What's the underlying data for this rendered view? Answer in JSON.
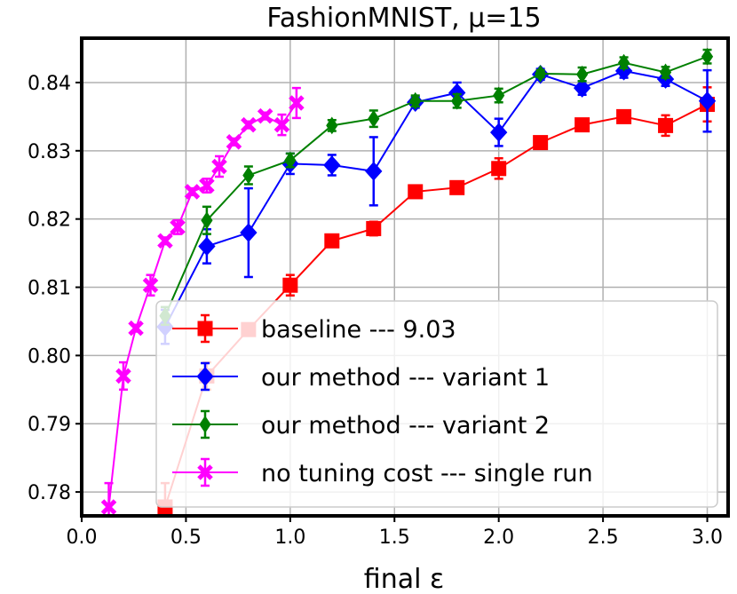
{
  "chart_data": {
    "type": "line",
    "title": "FashionMNIST, μ=15",
    "xlabel": "final ε",
    "ylabel": "",
    "xlim": [
      0.0,
      3.1
    ],
    "ylim": [
      0.7765,
      0.8465
    ],
    "xticks": [
      0.0,
      0.5,
      1.0,
      1.5,
      2.0,
      2.5,
      3.0
    ],
    "xtick_labels": [
      "0.0",
      "0.5",
      "1.0",
      "1.5",
      "2.0",
      "2.5",
      "3.0"
    ],
    "yticks": [
      0.78,
      0.79,
      0.8,
      0.81,
      0.82,
      0.83,
      0.84
    ],
    "ytick_labels": [
      "0.78",
      "0.79",
      "0.80",
      "0.81",
      "0.82",
      "0.83",
      "0.84"
    ],
    "grid": true,
    "legend_position": "lower-right",
    "series": [
      {
        "name": "baseline --- 9.03",
        "color": "#ff0000",
        "marker": "square",
        "points": [
          {
            "x": 0.4,
            "y": 0.7778,
            "err": 0.0035
          },
          {
            "x": 0.6,
            "y": 0.797,
            "err": 0.002
          },
          {
            "x": 0.8,
            "y": 0.8038,
            "err": 0.0008
          },
          {
            "x": 1.0,
            "y": 0.8103,
            "err": 0.0015
          },
          {
            "x": 1.2,
            "y": 0.8168,
            "err": 0.0005
          },
          {
            "x": 1.4,
            "y": 0.8186,
            "err": 0.001
          },
          {
            "x": 1.6,
            "y": 0.824,
            "err": 0.0005
          },
          {
            "x": 1.8,
            "y": 0.8246,
            "err": 0.0008
          },
          {
            "x": 2.0,
            "y": 0.8274,
            "err": 0.0015
          },
          {
            "x": 2.2,
            "y": 0.8312,
            "err": 0.0005
          },
          {
            "x": 2.4,
            "y": 0.8338,
            "err": 0.0005
          },
          {
            "x": 2.6,
            "y": 0.835,
            "err": 0.0005
          },
          {
            "x": 2.8,
            "y": 0.8337,
            "err": 0.0015
          },
          {
            "x": 3.0,
            "y": 0.8368,
            "err": 0.0025
          }
        ]
      },
      {
        "name": "our method --- variant 1",
        "color": "#0000ff",
        "marker": "diamond",
        "points": [
          {
            "x": 0.4,
            "y": 0.8042,
            "err": 0.0025
          },
          {
            "x": 0.6,
            "y": 0.816,
            "err": 0.0025
          },
          {
            "x": 0.8,
            "y": 0.818,
            "err": 0.0065
          },
          {
            "x": 1.0,
            "y": 0.8281,
            "err": 0.0015
          },
          {
            "x": 1.2,
            "y": 0.8279,
            "err": 0.0015
          },
          {
            "x": 1.4,
            "y": 0.827,
            "err": 0.005
          },
          {
            "x": 1.6,
            "y": 0.8371,
            "err": 0.0008
          },
          {
            "x": 1.8,
            "y": 0.8385,
            "err": 0.0015
          },
          {
            "x": 2.0,
            "y": 0.8327,
            "err": 0.002
          },
          {
            "x": 2.2,
            "y": 0.8412,
            "err": 0.0008
          },
          {
            "x": 2.4,
            "y": 0.8392,
            "err": 0.001
          },
          {
            "x": 2.6,
            "y": 0.8417,
            "err": 0.001
          },
          {
            "x": 2.8,
            "y": 0.8405,
            "err": 0.001
          },
          {
            "x": 3.0,
            "y": 0.8373,
            "err": 0.0045
          }
        ]
      },
      {
        "name": "our method --- variant 2",
        "color": "#008000",
        "marker": "thin-diamond",
        "points": [
          {
            "x": 0.4,
            "y": 0.8058,
            "err": 0.0013
          },
          {
            "x": 0.6,
            "y": 0.8198,
            "err": 0.002
          },
          {
            "x": 0.8,
            "y": 0.8264,
            "err": 0.0013
          },
          {
            "x": 1.0,
            "y": 0.8286,
            "err": 0.001
          },
          {
            "x": 1.2,
            "y": 0.8337,
            "err": 0.0008
          },
          {
            "x": 1.4,
            "y": 0.8347,
            "err": 0.0012
          },
          {
            "x": 1.6,
            "y": 0.8373,
            "err": 0.0008
          },
          {
            "x": 1.8,
            "y": 0.8373,
            "err": 0.001
          },
          {
            "x": 2.0,
            "y": 0.8381,
            "err": 0.001
          },
          {
            "x": 2.2,
            "y": 0.8413,
            "err": 0.0005
          },
          {
            "x": 2.4,
            "y": 0.8412,
            "err": 0.001
          },
          {
            "x": 2.6,
            "y": 0.8429,
            "err": 0.0008
          },
          {
            "x": 2.8,
            "y": 0.8415,
            "err": 0.0008
          },
          {
            "x": 3.0,
            "y": 0.8438,
            "err": 0.001
          }
        ]
      },
      {
        "name": "no tuning cost --- single run",
        "color": "#ff00ff",
        "marker": "x-filled",
        "points": [
          {
            "x": 0.13,
            "y": 0.7778,
            "err": 0.0035
          },
          {
            "x": 0.2,
            "y": 0.797,
            "err": 0.002
          },
          {
            "x": 0.26,
            "y": 0.804,
            "err": 0.0005
          },
          {
            "x": 0.33,
            "y": 0.8103,
            "err": 0.0015
          },
          {
            "x": 0.4,
            "y": 0.8168,
            "err": 0.0005
          },
          {
            "x": 0.46,
            "y": 0.8188,
            "err": 0.001
          },
          {
            "x": 0.53,
            "y": 0.824,
            "err": 0.0005
          },
          {
            "x": 0.6,
            "y": 0.8249,
            "err": 0.001
          },
          {
            "x": 0.66,
            "y": 0.8277,
            "err": 0.0015
          },
          {
            "x": 0.73,
            "y": 0.8313,
            "err": 0.0005
          },
          {
            "x": 0.8,
            "y": 0.8338,
            "err": 0.0005
          },
          {
            "x": 0.88,
            "y": 0.8351,
            "err": 0.0005
          },
          {
            "x": 0.96,
            "y": 0.8338,
            "err": 0.0015
          },
          {
            "x": 1.03,
            "y": 0.837,
            "err": 0.0022
          }
        ]
      }
    ]
  }
}
